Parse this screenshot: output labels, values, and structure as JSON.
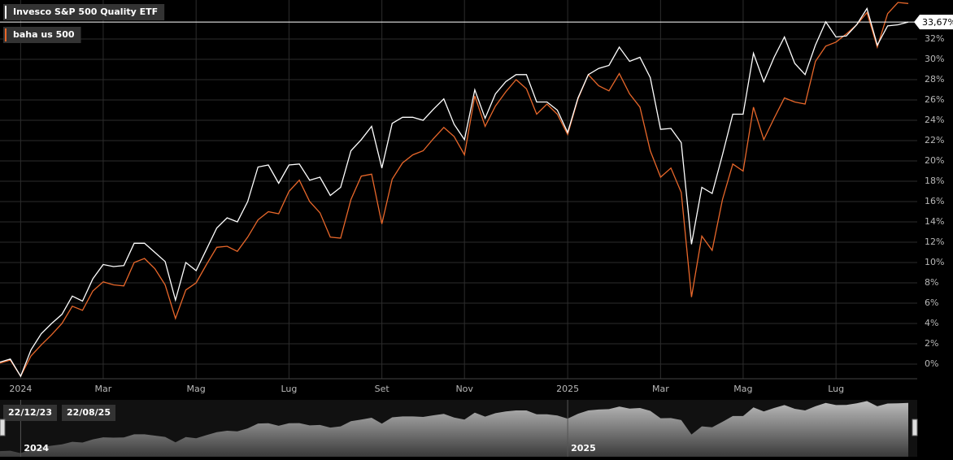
{
  "chart_data": {
    "type": "line",
    "categories": [
      null,
      null,
      "2024",
      null,
      null,
      null,
      null,
      null,
      null,
      null,
      "Mar",
      null,
      null,
      null,
      null,
      null,
      null,
      null,
      null,
      "Mag",
      null,
      null,
      null,
      null,
      null,
      null,
      null,
      null,
      "Lug",
      null,
      null,
      null,
      null,
      null,
      null,
      null,
      null,
      "Set",
      null,
      null,
      null,
      null,
      null,
      null,
      null,
      "Nov",
      null,
      null,
      null,
      null,
      null,
      null,
      null,
      null,
      null,
      "2025",
      null,
      null,
      null,
      null,
      null,
      null,
      null,
      null,
      "Mar",
      null,
      null,
      null,
      null,
      null,
      null,
      null,
      "Mag",
      null,
      null,
      null,
      null,
      null,
      null,
      null,
      null,
      "Lug",
      null,
      null,
      null,
      null,
      null,
      null,
      null
    ],
    "series": [
      {
        "name": "Invesco S&P 500 Quality ETF",
        "color": "#ffffff",
        "values": [
          0.2,
          0.5,
          -1.2,
          1.4,
          3.0,
          4.0,
          4.9,
          6.7,
          6.2,
          8.4,
          9.8,
          9.6,
          9.7,
          11.9,
          11.9,
          11.0,
          10.1,
          6.3,
          10.0,
          9.2,
          11.3,
          13.4,
          14.4,
          14.0,
          16.0,
          19.4,
          19.6,
          17.8,
          19.6,
          19.7,
          18.1,
          18.4,
          16.6,
          17.4,
          21.0,
          22.1,
          23.4,
          19.3,
          23.7,
          24.3,
          24.3,
          24.0,
          25.1,
          26.1,
          23.6,
          22.1,
          27.0,
          24.2,
          26.6,
          27.8,
          28.5,
          28.5,
          25.8,
          25.8,
          25.0,
          22.8,
          26.2,
          28.5,
          29.1,
          29.4,
          31.2,
          29.8,
          30.2,
          28.2,
          23.1,
          23.2,
          21.8,
          11.8,
          17.4,
          16.8,
          20.6,
          24.6,
          24.6,
          30.6,
          27.8,
          30.2,
          32.2,
          29.6,
          28.5,
          31.4,
          33.7,
          32.2,
          32.3,
          33.4,
          35.0,
          31.4,
          33.3,
          33.4,
          33.67
        ],
        "value_labels": [
          null,
          null,
          null,
          null,
          null,
          null,
          null,
          null,
          null,
          null,
          null,
          null,
          null,
          null,
          null,
          null,
          null,
          null,
          null,
          null,
          null,
          null,
          null,
          null,
          null,
          null,
          null,
          null,
          null,
          null,
          null,
          null,
          null,
          null,
          null,
          null,
          null,
          null,
          null,
          null,
          null,
          null,
          null,
          null,
          null,
          null,
          null,
          null,
          null,
          null,
          null,
          null,
          null,
          null,
          null,
          null,
          null,
          null,
          null,
          null,
          null,
          null,
          null,
          null,
          null,
          null,
          null,
          null,
          null,
          null,
          null,
          null,
          null,
          null,
          null,
          null,
          null,
          null,
          null,
          null,
          null,
          null,
          null,
          null,
          null,
          null,
          null,
          null,
          "33,67%"
        ]
      },
      {
        "name": "baha us 500",
        "color": "#e8672a",
        "values": [
          0.1,
          0.4,
          -1.2,
          0.8,
          1.9,
          2.9,
          4.0,
          5.7,
          5.3,
          7.2,
          8.1,
          7.8,
          7.7,
          10.0,
          10.4,
          9.4,
          7.8,
          4.5,
          7.3,
          8.0,
          9.8,
          11.5,
          11.6,
          11.1,
          12.5,
          14.2,
          15.0,
          14.8,
          17.0,
          18.1,
          16.0,
          14.9,
          12.5,
          12.4,
          16.2,
          18.5,
          18.7,
          13.8,
          18.2,
          19.8,
          20.6,
          21.0,
          22.2,
          23.3,
          22.4,
          20.6,
          26.4,
          23.4,
          25.4,
          26.8,
          28.0,
          27.1,
          24.6,
          25.6,
          24.6,
          22.6,
          26.1,
          28.5,
          27.4,
          26.9,
          28.6,
          26.6,
          25.3,
          21.0,
          18.4,
          19.3,
          16.9,
          6.6,
          12.6,
          11.2,
          16.2,
          19.7,
          19.0,
          25.3,
          22.1,
          24.2,
          26.2,
          25.8,
          25.6,
          29.8,
          31.3,
          31.7,
          32.5,
          33.4,
          34.6,
          31.2,
          34.5,
          35.6,
          35.5
        ]
      }
    ],
    "ylim": [
      -1.44,
      35.84
    ],
    "yticks": [
      {
        "value": 0,
        "label": "0%"
      },
      {
        "value": 2,
        "label": "2%"
      },
      {
        "value": 4,
        "label": "4%"
      },
      {
        "value": 6,
        "label": "6%"
      },
      {
        "value": 8,
        "label": "8%"
      },
      {
        "value": 10,
        "label": "10%"
      },
      {
        "value": 12,
        "label": "12%"
      },
      {
        "value": 14,
        "label": "14%"
      },
      {
        "value": 16,
        "label": "16%"
      },
      {
        "value": 18,
        "label": "18%"
      },
      {
        "value": 20,
        "label": "20%"
      },
      {
        "value": 22,
        "label": "22%"
      },
      {
        "value": 24,
        "label": "24%"
      },
      {
        "value": 26,
        "label": "26%"
      },
      {
        "value": 28,
        "label": "28%"
      },
      {
        "value": 30,
        "label": "30%"
      },
      {
        "value": 32,
        "label": "32%"
      }
    ],
    "grid": true,
    "navigator": {
      "start_label": "22/12/23",
      "end_label": "22/08/25"
    }
  }
}
